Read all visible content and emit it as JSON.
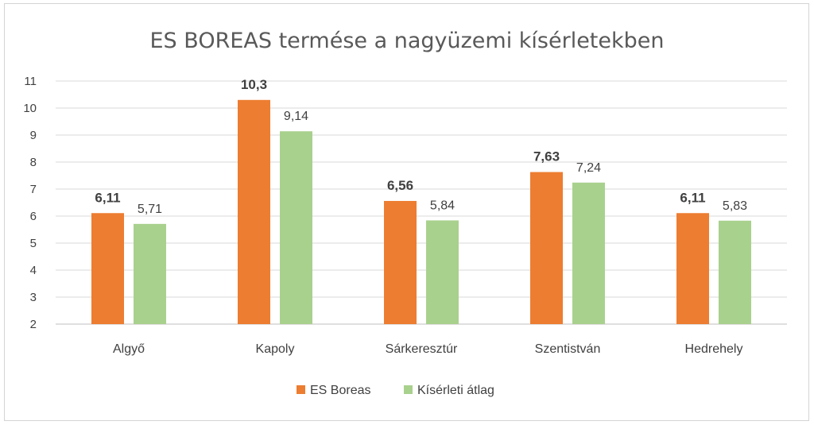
{
  "chart_data": {
    "type": "bar",
    "title": "ES BOREAS termése a nagyüzemi kísérletekben",
    "categories": [
      "Algyő",
      "Kapoly",
      "Sárkeresztúr",
      "Szentistván",
      "Hedrehely"
    ],
    "series": [
      {
        "name": "ES Boreas",
        "color": "#ED7D31",
        "values": [
          6.11,
          10.3,
          6.56,
          7.63,
          6.11
        ],
        "labels": [
          "6,11",
          "10,3",
          "6,56",
          "7,63",
          "6,11"
        ],
        "label_bold": true
      },
      {
        "name": "Kísérleti átlag",
        "color": "#A9D18E",
        "values": [
          5.71,
          9.14,
          5.84,
          7.24,
          5.83
        ],
        "labels": [
          "5,71",
          "9,14",
          "5,84",
          "7,24",
          "5,83"
        ],
        "label_bold": false
      }
    ],
    "ylim": [
      2,
      11
    ],
    "yticks": [
      "2",
      "3",
      "4",
      "5",
      "6",
      "7",
      "8",
      "9",
      "10",
      "11"
    ],
    "grid": true,
    "legend_position": "bottom"
  }
}
